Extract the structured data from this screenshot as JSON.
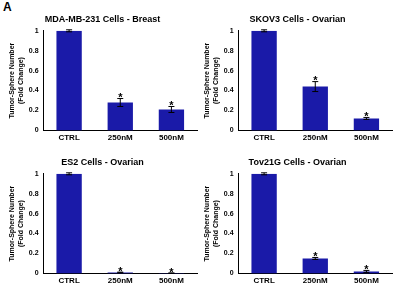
{
  "panel_label": "A",
  "chart_data": [
    {
      "type": "bar",
      "title": "MDA-MB-231 Cells - Breast",
      "categories": [
        "CTRL",
        "250nM",
        "500nM"
      ],
      "values": [
        1,
        0.28,
        0.21
      ],
      "errors": [
        0.01,
        0.04,
        0.03
      ],
      "color": "#1a1aa8",
      "ylim": [
        0,
        1
      ],
      "yticks": [
        0,
        0.2,
        0.4,
        0.6,
        0.8,
        1
      ],
      "grid": false,
      "y_label": [
        "Tumor-Sphere Number",
        "(Fold Change)"
      ],
      "annotations": [
        {
          "category": "250nM",
          "text": "*"
        },
        {
          "category": "500nM",
          "text": "*"
        }
      ]
    },
    {
      "type": "bar",
      "title": "SKOV3 Cells - Ovarian",
      "categories": [
        "CTRL",
        "250nM",
        "500nM"
      ],
      "values": [
        1,
        0.44,
        0.12
      ],
      "errors": [
        0.01,
        0.05,
        0.01
      ],
      "color": "#1a1aa8",
      "ylim": [
        0,
        1
      ],
      "yticks": [
        0,
        0.2,
        0.4,
        0.6,
        0.8,
        1
      ],
      "grid": false,
      "y_label": [
        "Tumor-Sphere Number",
        "(Fold Change)"
      ],
      "annotations": [
        {
          "category": "250nM",
          "text": "*"
        },
        {
          "category": "500nM",
          "text": "*"
        }
      ]
    },
    {
      "type": "bar",
      "title": "ES2 Cells - Ovarian",
      "categories": [
        "CTRL",
        "250nM",
        "500nM"
      ],
      "values": [
        1,
        0.01,
        0.003
      ],
      "errors": [
        0.01,
        0.003,
        0.001
      ],
      "color": "#1a1aa8",
      "ylim": [
        0,
        1
      ],
      "yticks": [
        0,
        0.2,
        0.4,
        0.6,
        0.8,
        1
      ],
      "grid": false,
      "y_label": [
        "Tumor-Sphere Number",
        "(Fold Change)"
      ],
      "annotations": [
        {
          "category": "250nM",
          "text": "*"
        },
        {
          "category": "500nM",
          "text": "*"
        }
      ]
    },
    {
      "type": "bar",
      "title": "Tov21G Cells - Ovarian",
      "categories": [
        "CTRL",
        "250nM",
        "500nM"
      ],
      "values": [
        1,
        0.15,
        0.02
      ],
      "errors": [
        0.01,
        0.01,
        0.01
      ],
      "color": "#1a1aa8",
      "ylim": [
        0,
        1
      ],
      "yticks": [
        0,
        0.2,
        0.4,
        0.6,
        0.8,
        1
      ],
      "grid": false,
      "y_label": [
        "Tumor-Sphere Number",
        "(Fold Change)"
      ],
      "annotations": [
        {
          "category": "250nM",
          "text": "*"
        },
        {
          "category": "500nM",
          "text": "*"
        }
      ]
    }
  ]
}
